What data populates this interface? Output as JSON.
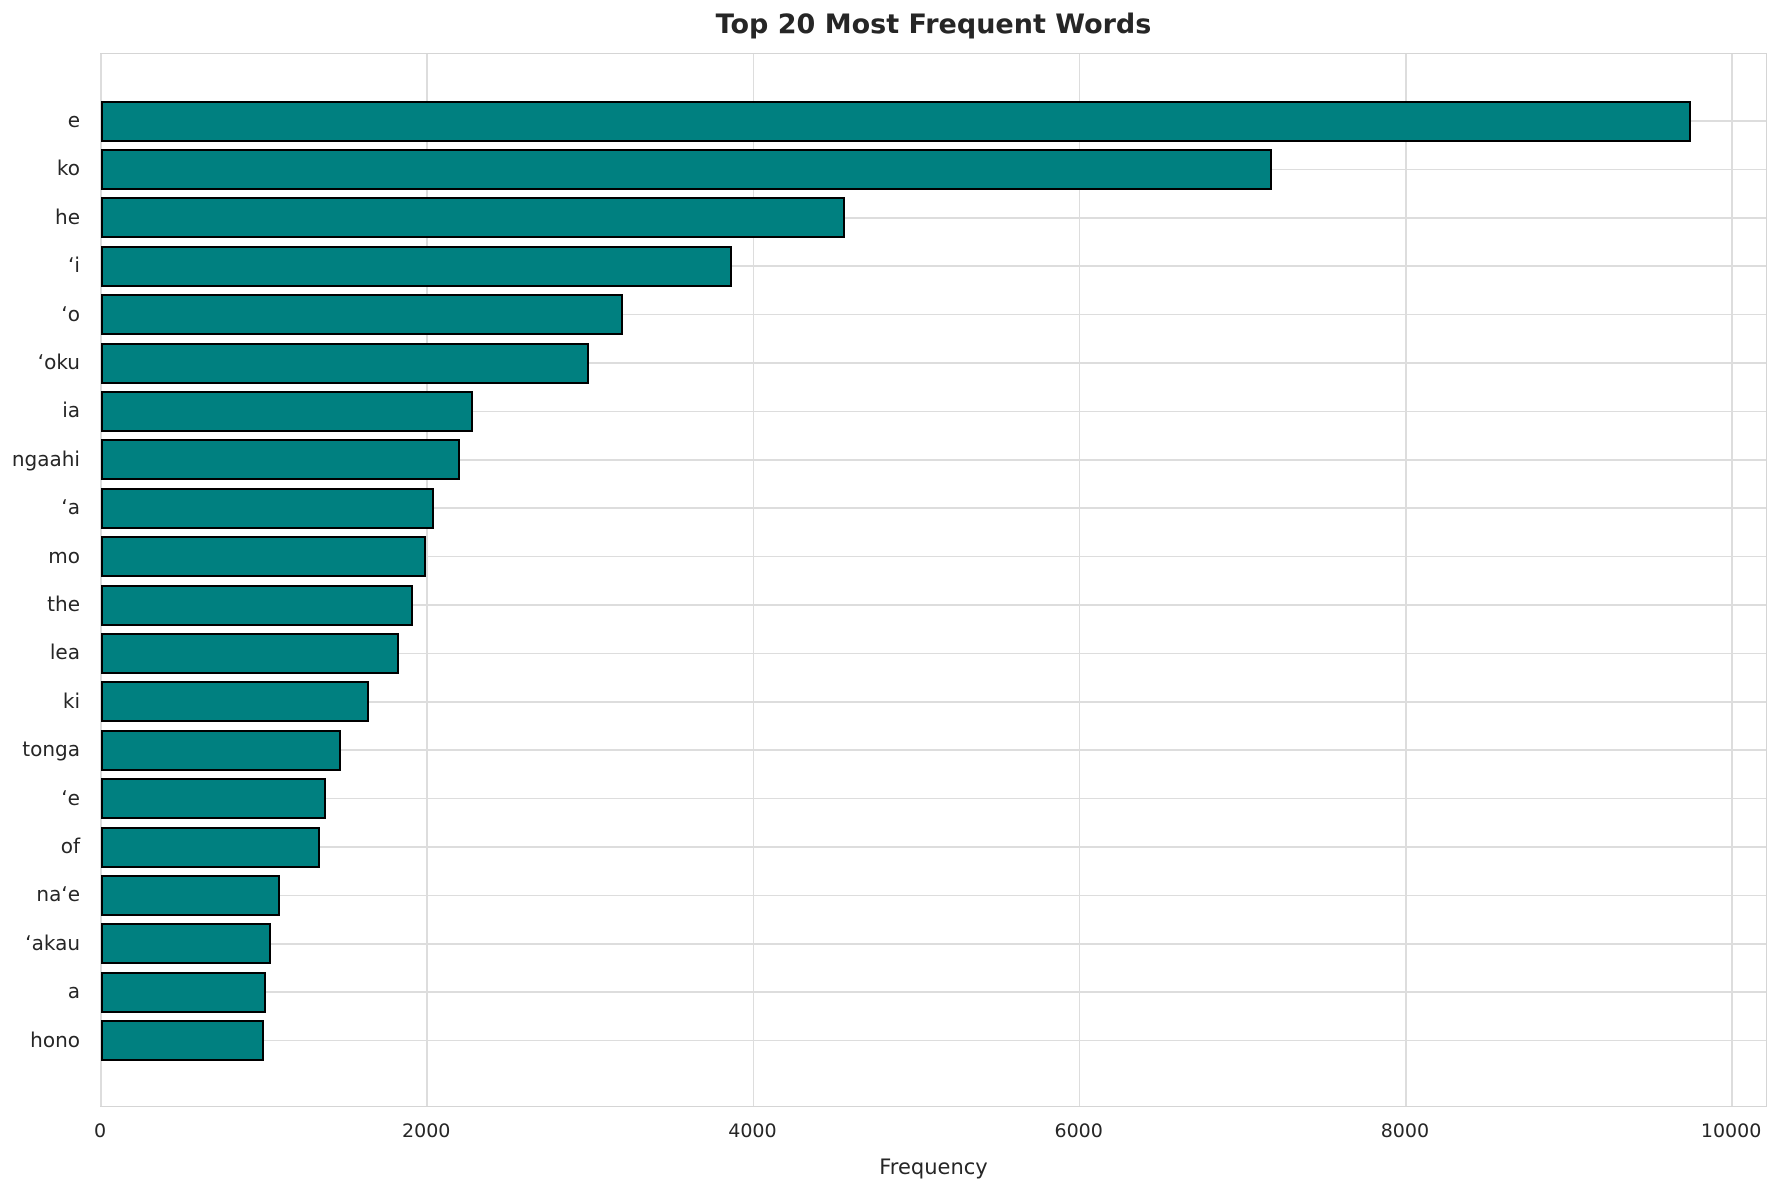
{
  "chart_data": {
    "type": "bar",
    "orientation": "horizontal",
    "title": "Top 20 Most Frequent Words",
    "xlabel": "Frequency",
    "ylabel": "",
    "categories": [
      "e",
      "ko",
      "he",
      "ʻi",
      "ʻo",
      "ʻoku",
      "ia",
      "ngaahi",
      "ʻa",
      "mo",
      "the",
      "lea",
      "ki",
      "tonga",
      "ʻe",
      "of",
      "naʻe",
      "ʻakau",
      "a",
      "hono"
    ],
    "values": [
      9750,
      7180,
      4560,
      3870,
      3200,
      2990,
      2280,
      2200,
      2040,
      1990,
      1910,
      1830,
      1640,
      1470,
      1380,
      1340,
      1100,
      1040,
      1010,
      1000
    ],
    "xticks": [
      0,
      2000,
      4000,
      6000,
      8000,
      10000
    ],
    "xlim": [
      0,
      10220
    ],
    "grid": true,
    "legend_position": "none",
    "bar_color": "#008080",
    "bar_edge_color": "#000000",
    "grid_color": "#dddddd",
    "spine_color": "#d5d5d5",
    "text_color": "#262626",
    "background_color": "#ffffff"
  }
}
